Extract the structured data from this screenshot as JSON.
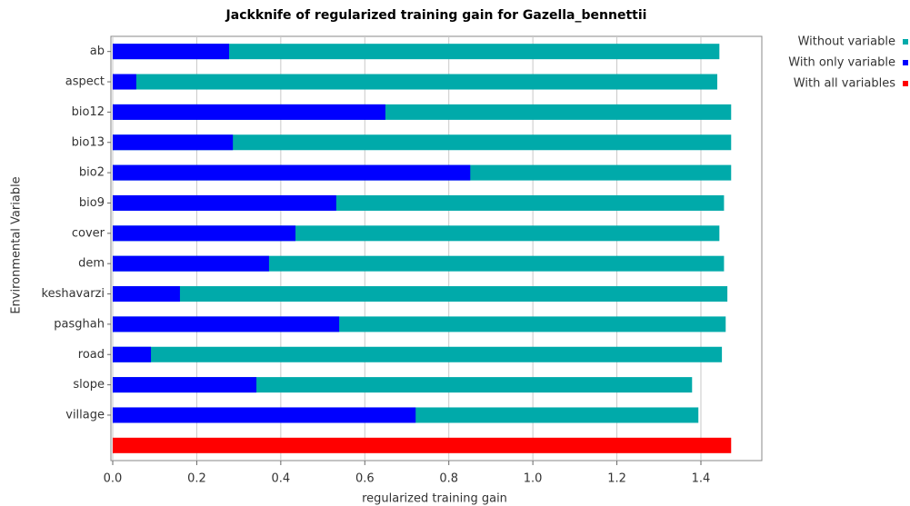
{
  "chart_data": {
    "type": "bar",
    "orientation": "horizontal",
    "title": "Jackknife of regularized training gain for Gazella_bennettii",
    "x_label": "regularized training gain",
    "y_label": "Environmental Variable",
    "categories": [
      "ab",
      "aspect",
      "bio12",
      "bio13",
      "bio2",
      "bio9",
      "cover",
      "dem",
      "keshavarzi",
      "pasghah",
      "road",
      "slope",
      "village",
      null
    ],
    "series": [
      {
        "name": "Without variable",
        "color": "#00aaaa",
        "values": [
          1.444,
          1.439,
          1.472,
          1.472,
          1.472,
          1.455,
          1.444,
          1.455,
          1.463,
          1.459,
          1.45,
          1.379,
          1.394,
          null
        ]
      },
      {
        "name": "With only variable",
        "color": "#0000ff",
        "values": [
          0.277,
          0.056,
          0.649,
          0.286,
          0.851,
          0.532,
          0.435,
          0.372,
          0.16,
          0.539,
          0.091,
          0.342,
          0.721,
          null
        ]
      },
      {
        "name": "With all variables",
        "color": "#ff0000",
        "values": [
          null,
          null,
          null,
          null,
          null,
          null,
          null,
          null,
          null,
          null,
          null,
          null,
          null,
          1.472
        ]
      }
    ],
    "xlim": [
      0,
      1.545
    ],
    "xticks": [
      {
        "value": 0,
        "label": "0.0"
      },
      0.2,
      0.4,
      0.6,
      0.8,
      {
        "value": 1,
        "label": "1.0"
      },
      1.2,
      1.4
    ],
    "grid": true,
    "legend": "right"
  }
}
